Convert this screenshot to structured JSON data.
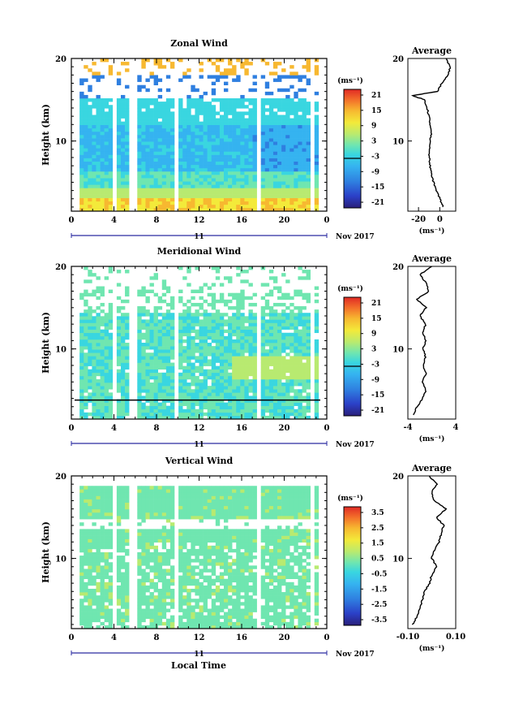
{
  "panels": [
    {
      "id": "zonal",
      "title": "Zonal Wind",
      "ylabel": "Height (km)",
      "y_ticks": [
        "10",
        "20"
      ],
      "x_ticks": [
        "0",
        "4",
        "8",
        "12",
        "16",
        "20",
        "0"
      ],
      "day_label": "11",
      "date_label": "Nov 2017",
      "colorbar": {
        "unit": "(ms⁻¹)",
        "ticks": [
          "21",
          "15",
          "9",
          "3",
          "-3",
          "-9",
          "-15",
          "-21"
        ]
      },
      "avg": {
        "title": "Average",
        "xticks": [
          "-20",
          "0"
        ],
        "xunit": "(ms⁻¹)",
        "yticks": [
          "10",
          "20"
        ]
      }
    },
    {
      "id": "meridional",
      "title": "Meridional Wind",
      "ylabel": "Height (km)",
      "y_ticks": [
        "10",
        "20"
      ],
      "x_ticks": [
        "0",
        "4",
        "8",
        "12",
        "16",
        "20",
        "0"
      ],
      "day_label": "11",
      "date_label": "Nov 2017",
      "colorbar": {
        "unit": "(ms⁻¹)",
        "ticks": [
          "21",
          "15",
          "9",
          "3",
          "-3",
          "-9",
          "-15",
          "-21"
        ]
      },
      "avg": {
        "title": "Average",
        "xticks": [
          "-4",
          "4"
        ],
        "xunit": "(ms⁻¹)",
        "yticks": [
          "10",
          "20"
        ]
      }
    },
    {
      "id": "vertical",
      "title": "Vertical Wind",
      "ylabel": "Height (km)",
      "y_ticks": [
        "10",
        "20"
      ],
      "x_ticks": [
        "0",
        "4",
        "8",
        "12",
        "16",
        "20",
        "0"
      ],
      "day_label": "11",
      "date_label": "Nov 2017",
      "colorbar": {
        "unit": "(ms⁻¹)",
        "ticks": [
          "3.5",
          "2.5",
          "1.5",
          "0.5",
          "-0.5",
          "-1.5",
          "-2.5",
          "-3.5"
        ]
      },
      "avg": {
        "title": "Average",
        "xticks": [
          "-0.10",
          "0.10"
        ],
        "xunit": "(ms⁻¹)",
        "yticks": [
          "10",
          "20"
        ]
      }
    }
  ],
  "xlabel": "Local Time",
  "colors": {
    "jet": [
      "#2a1f7a",
      "#2b40c8",
      "#2f7fe0",
      "#35b3f0",
      "#39d6e0",
      "#6fe6b0",
      "#b8ea70",
      "#f3ea3a",
      "#f7b830",
      "#f3702a",
      "#e02a25"
    ]
  },
  "chart_data": [
    {
      "type": "heatmap",
      "title": "Zonal Wind",
      "ylabel": "Height (km)",
      "xlabel": "Local Time",
      "ylim": [
        1.5,
        20
      ],
      "xlim": [
        0,
        24
      ],
      "color_range": [
        -21,
        21
      ],
      "data_gaps_hours": [
        4.2,
        5.8,
        10.0,
        17.7,
        22.5
      ],
      "profile": {
        "height_km": [
          2,
          3,
          4,
          5,
          6,
          7,
          8,
          9,
          10,
          11,
          12,
          13,
          14,
          15,
          15.5,
          16,
          17,
          18,
          19,
          20
        ],
        "value": [
          3,
          0,
          -3,
          -6,
          -8,
          -9,
          -10,
          -10,
          -9,
          -8,
          -9,
          -10,
          -12,
          -14,
          -26,
          -2,
          2,
          8,
          10,
          6
        ]
      }
    },
    {
      "type": "heatmap",
      "title": "Meridional Wind",
      "ylabel": "Height (km)",
      "xlabel": "Local Time",
      "ylim": [
        1.5,
        20
      ],
      "xlim": [
        0,
        24
      ],
      "color_range": [
        -21,
        21
      ],
      "data_gaps_hours": [
        4.2,
        5.8,
        10.0,
        17.7,
        22.5
      ],
      "profile": {
        "height_km": [
          2,
          3,
          4,
          5,
          6,
          7,
          8,
          9,
          10,
          11,
          12,
          13,
          14,
          15,
          16,
          17,
          18,
          19,
          20
        ],
        "value": [
          -3,
          -2.5,
          -1.5,
          -1,
          -1.5,
          -1,
          -1.5,
          -1,
          -1.5,
          -1,
          -1.5,
          -1,
          -2,
          -1,
          -2.5,
          -0.5,
          -1,
          -2,
          0
        ]
      }
    },
    {
      "type": "heatmap",
      "title": "Vertical Wind",
      "ylabel": "Height (km)",
      "xlabel": "Local Time",
      "ylim": [
        1.5,
        20
      ],
      "xlim": [
        0,
        24
      ],
      "color_range": [
        -3.5,
        3.5
      ],
      "data_gaps_hours": [
        4.2,
        5.8,
        10.0,
        17.7,
        22.5
      ],
      "profile": {
        "height_km": [
          2,
          3,
          4,
          5,
          6,
          7,
          8,
          9,
          10,
          11,
          12,
          13,
          14,
          15,
          16,
          17,
          18,
          19,
          20
        ],
        "value": [
          -0.08,
          -0.06,
          -0.05,
          -0.04,
          -0.03,
          -0.01,
          0.0,
          0.02,
          0.0,
          0.01,
          0.03,
          0.04,
          0.05,
          0.02,
          0.06,
          0.01,
          0.0,
          0.02,
          -0.01
        ]
      }
    }
  ]
}
